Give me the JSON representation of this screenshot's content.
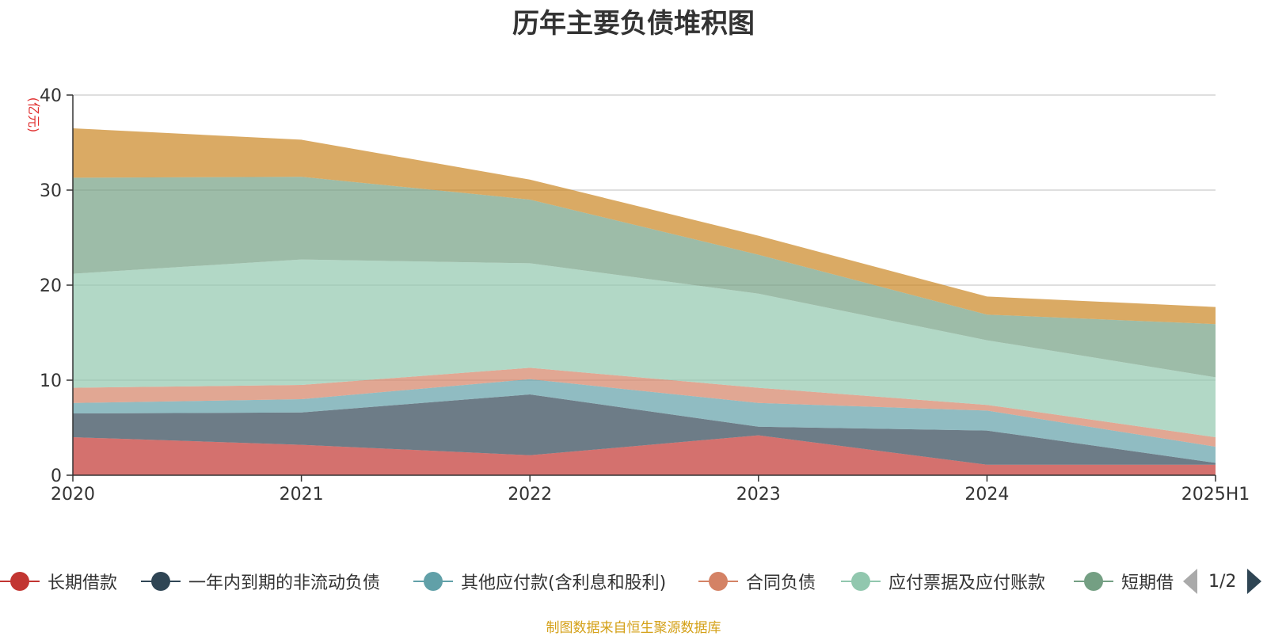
{
  "title": "历年主要负债堆积图",
  "unit": "(亿元)",
  "source": "制图数据来自恒生聚源数据库",
  "pager": {
    "text": "1/2"
  },
  "chart_data": {
    "type": "area",
    "stacked": true,
    "categories": [
      "2020",
      "2021",
      "2022",
      "2023",
      "2024",
      "2025H1"
    ],
    "ylim": [
      0,
      40
    ],
    "yticks": [
      0,
      10,
      20,
      30,
      40
    ],
    "ylabel": "(亿元)",
    "grid": true,
    "legend_position": "bottom",
    "series": [
      {
        "name": "长期借款",
        "color": "#c23531",
        "values": [
          4.0,
          3.2,
          2.1,
          4.2,
          1.1,
          1.1
        ]
      },
      {
        "name": "一年内到期的非流动负债",
        "color": "#2f4554",
        "values": [
          2.5,
          3.4,
          6.4,
          0.9,
          3.6,
          0.2
        ]
      },
      {
        "name": "其他应付款(含利息和股利)",
        "color": "#61a0a8",
        "values": [
          1.1,
          1.4,
          1.6,
          2.5,
          2.1,
          1.7
        ]
      },
      {
        "name": "合同负债",
        "color": "#d48265",
        "values": [
          1.6,
          1.5,
          1.2,
          1.6,
          0.6,
          1.0
        ]
      },
      {
        "name": "应付票据及应付账款",
        "color": "#91c7ae",
        "values": [
          12.0,
          13.2,
          11.0,
          9.9,
          6.8,
          6.3
        ]
      },
      {
        "name": "短期借款",
        "color": "#749f83",
        "values": [
          10.1,
          8.7,
          6.7,
          4.1,
          2.7,
          5.6
        ]
      },
      {
        "name": "",
        "color": "#ca8622",
        "values": [
          5.2,
          3.9,
          2.1,
          2.0,
          1.9,
          1.8
        ]
      }
    ]
  }
}
